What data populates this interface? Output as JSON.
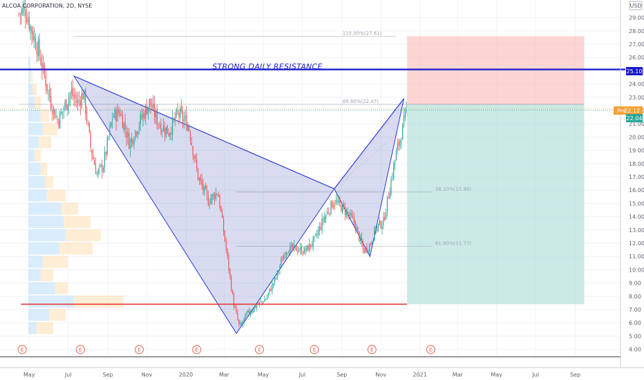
{
  "header": {
    "title": "ALCOA CORPORATION, 2D, NYSE",
    "currency": "USD"
  },
  "annotation": {
    "resistance_label": "STRONG DAILY RESISTANCE"
  },
  "price_tags": {
    "resistance": "25.10",
    "pre_label": "Pre",
    "pre_value": "22.12",
    "last": "22.04"
  },
  "fib_labels": {
    "f115": "115.00%(27.61)",
    "f886": "88.60%(22.47)",
    "f382": "38.20%(15.86)",
    "f618": "61.80%(11.77)"
  },
  "event_marker": "E",
  "colors": {
    "up": "#26a69a",
    "down": "#ef5350",
    "resistance": "#1515cc",
    "support": "#e53935",
    "pattern_fill": "#3f51b5",
    "pattern_stroke": "#2a35d8",
    "stop_zone": "#f8bdb7",
    "target_zone": "#a5dbd2"
  },
  "chart_data": {
    "type": "candlestick",
    "title": "ALCOA CORPORATION, 2D, NYSE",
    "y_axis": {
      "range": [
        3.5,
        30.3
      ],
      "ticks": [
        "4.00",
        "5.00",
        "6.00",
        "7.00",
        "8.00",
        "9.00",
        "10.00",
        "11.00",
        "12.00",
        "13.00",
        "14.00",
        "15.00",
        "16.00",
        "17.00",
        "18.00",
        "19.00",
        "20.00",
        "21.00",
        "22.00",
        "23.00",
        "24.00",
        "25.00",
        "26.00",
        "27.00",
        "28.00",
        "29.00"
      ]
    },
    "x_axis": {
      "range": [
        "2019-04-15",
        "2021-10-01"
      ],
      "ticks": [
        {
          "label": "May",
          "date": "2019-05-01"
        },
        {
          "label": "Jul",
          "date": "2019-07-01"
        },
        {
          "label": "Sep",
          "date": "2019-09-01"
        },
        {
          "label": "Nov",
          "date": "2019-11-01"
        },
        {
          "label": "2020",
          "date": "2020-01-01"
        },
        {
          "label": "Mar",
          "date": "2020-03-01"
        },
        {
          "label": "May",
          "date": "2020-05-01"
        },
        {
          "label": "Jul",
          "date": "2020-07-01"
        },
        {
          "label": "Sep",
          "date": "2020-09-01"
        },
        {
          "label": "Nov",
          "date": "2020-11-01"
        },
        {
          "label": "2021",
          "date": "2021-01-01"
        },
        {
          "label": "Mar",
          "date": "2021-03-01"
        },
        {
          "label": "May",
          "date": "2021-05-01"
        },
        {
          "label": "Jul",
          "date": "2021-07-01"
        },
        {
          "label": "Sep",
          "date": "2021-09-01"
        }
      ]
    },
    "price_path": [
      {
        "date": "2019-04-15",
        "close": 29.3
      },
      {
        "date": "2019-04-25",
        "close": 29.6
      },
      {
        "date": "2019-05-05",
        "close": 28.0
      },
      {
        "date": "2019-05-15",
        "close": 26.6
      },
      {
        "date": "2019-05-25",
        "close": 24.6
      },
      {
        "date": "2019-06-05",
        "close": 22.4
      },
      {
        "date": "2019-06-15",
        "close": 21.2
      },
      {
        "date": "2019-06-25",
        "close": 22.3
      },
      {
        "date": "2019-07-05",
        "close": 23.4
      },
      {
        "date": "2019-07-15",
        "close": 22.6
      },
      {
        "date": "2019-07-25",
        "close": 23.3
      },
      {
        "date": "2019-08-05",
        "close": 19.2
      },
      {
        "date": "2019-08-15",
        "close": 17.2
      },
      {
        "date": "2019-08-25",
        "close": 17.9
      },
      {
        "date": "2019-09-08",
        "close": 21.5
      },
      {
        "date": "2019-09-20",
        "close": 21.9
      },
      {
        "date": "2019-10-05",
        "close": 19.5
      },
      {
        "date": "2019-10-20",
        "close": 21.1
      },
      {
        "date": "2019-11-05",
        "close": 22.6
      },
      {
        "date": "2019-11-20",
        "close": 21.0
      },
      {
        "date": "2019-12-05",
        "close": 20.4
      },
      {
        "date": "2019-12-20",
        "close": 21.8
      },
      {
        "date": "2020-01-05",
        "close": 20.9
      },
      {
        "date": "2020-01-20",
        "close": 17.0
      },
      {
        "date": "2020-02-05",
        "close": 15.2
      },
      {
        "date": "2020-02-20",
        "close": 15.9
      },
      {
        "date": "2020-03-05",
        "close": 11.2
      },
      {
        "date": "2020-03-15",
        "close": 7.6
      },
      {
        "date": "2020-03-25",
        "close": 5.6
      },
      {
        "date": "2020-04-05",
        "close": 6.6
      },
      {
        "date": "2020-04-20",
        "close": 7.3
      },
      {
        "date": "2020-05-05",
        "close": 7.8
      },
      {
        "date": "2020-05-20",
        "close": 9.3
      },
      {
        "date": "2020-06-05",
        "close": 11.5
      },
      {
        "date": "2020-06-20",
        "close": 11.6
      },
      {
        "date": "2020-07-05",
        "close": 11.4
      },
      {
        "date": "2020-07-20",
        "close": 12.2
      },
      {
        "date": "2020-08-05",
        "close": 14.0
      },
      {
        "date": "2020-08-20",
        "close": 15.2
      },
      {
        "date": "2020-09-05",
        "close": 14.5
      },
      {
        "date": "2020-09-20",
        "close": 13.6
      },
      {
        "date": "2020-10-05",
        "close": 11.4
      },
      {
        "date": "2020-10-15",
        "close": 11.9
      },
      {
        "date": "2020-10-25",
        "close": 13.2
      },
      {
        "date": "2020-11-05",
        "close": 13.6
      },
      {
        "date": "2020-11-15",
        "close": 16.2
      },
      {
        "date": "2020-11-25",
        "close": 18.8
      },
      {
        "date": "2020-12-05",
        "close": 20.6
      },
      {
        "date": "2020-12-12",
        "close": 22.1
      }
    ],
    "harmonic_pattern": {
      "points": [
        {
          "date": "2019-07-10",
          "price": 24.6
        },
        {
          "date": "2020-03-20",
          "price": 5.2
        },
        {
          "date": "2020-08-20",
          "price": 16.1
        },
        {
          "date": "2020-10-15",
          "price": 11.0
        },
        {
          "date": "2020-12-07",
          "price": 22.9
        }
      ]
    },
    "fibonacci_levels": [
      {
        "ratio": "115.00%",
        "price": 27.61
      },
      {
        "ratio": "88.60%",
        "price": 22.47
      },
      {
        "ratio": "38.20%",
        "price": 15.86
      },
      {
        "ratio": "61.80%",
        "price": 11.77
      }
    ],
    "horizontal_levels": [
      {
        "name": "STRONG DAILY RESISTANCE",
        "price": 25.1
      },
      {
        "name": "support",
        "price": 7.4
      }
    ],
    "position": {
      "start_date": "2020-12-12",
      "end_date": "2021-09-15",
      "entry": 22.47,
      "stop": 27.61,
      "target": 7.4
    },
    "last_price": 22.04,
    "pre_market_price": 22.12,
    "volume_profile": [
      {
        "price": 5.6,
        "buy": 4,
        "sell": 8
      },
      {
        "price": 6.6,
        "buy": 10,
        "sell": 8
      },
      {
        "price": 7.6,
        "buy": 22,
        "sell": 24
      },
      {
        "price": 8.6,
        "buy": 13,
        "sell": 6
      },
      {
        "price": 9.6,
        "buy": 6,
        "sell": 6
      },
      {
        "price": 10.6,
        "buy": 7,
        "sell": 12
      },
      {
        "price": 11.6,
        "buy": 15,
        "sell": 16
      },
      {
        "price": 12.6,
        "buy": 18,
        "sell": 17
      },
      {
        "price": 13.6,
        "buy": 17,
        "sell": 13
      },
      {
        "price": 14.6,
        "buy": 16,
        "sell": 8
      },
      {
        "price": 15.6,
        "buy": 9,
        "sell": 9
      },
      {
        "price": 16.6,
        "buy": 8,
        "sell": 4
      },
      {
        "price": 17.6,
        "buy": 6,
        "sell": 3
      },
      {
        "price": 18.6,
        "buy": 3,
        "sell": 3
      },
      {
        "price": 19.6,
        "buy": 5,
        "sell": 6
      },
      {
        "price": 20.6,
        "buy": 7,
        "sell": 7
      },
      {
        "price": 21.6,
        "buy": 6,
        "sell": 4
      },
      {
        "price": 22.6,
        "buy": 3,
        "sell": 3
      },
      {
        "price": 23.6,
        "buy": 2,
        "sell": 2
      },
      {
        "price": 24.6,
        "buy": 1,
        "sell": 1
      },
      {
        "price": 25.6,
        "buy": 1,
        "sell": 0
      }
    ],
    "earnings_dates": [
      "2019-04-20",
      "2019-07-20",
      "2019-10-20",
      "2020-01-18",
      "2020-04-25",
      "2020-07-20",
      "2020-10-18",
      "2021-01-18"
    ],
    "grid": true
  }
}
